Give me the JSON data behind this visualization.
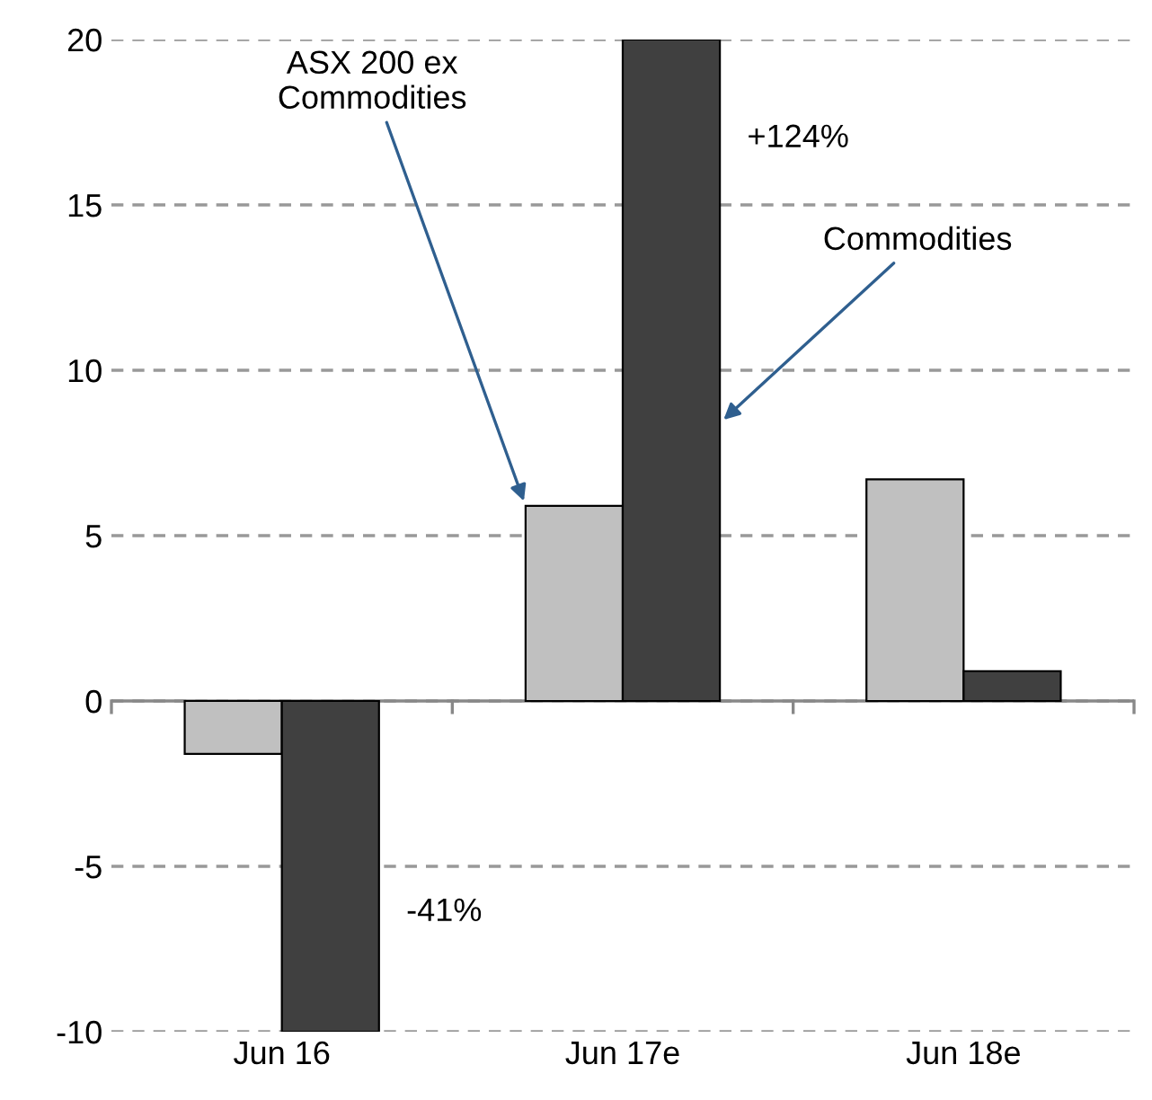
{
  "chart_data": {
    "type": "bar",
    "categories": [
      "Jun 16",
      "Jun 17e",
      "Jun 18e"
    ],
    "series": [
      {
        "name": "ASX 200 ex Commodities",
        "color": "#c0c0c0",
        "values": [
          -1.6,
          5.9,
          6.7
        ]
      },
      {
        "name": "Commodities",
        "color": "#404040",
        "values": [
          -10,
          20,
          0.9
        ]
      }
    ],
    "ylim": [
      -10,
      20
    ],
    "yticks": [
      -10,
      -5,
      0,
      5,
      10,
      15,
      20
    ],
    "grid": "y",
    "annotations": [
      "-41%",
      "+124%"
    ]
  }
}
